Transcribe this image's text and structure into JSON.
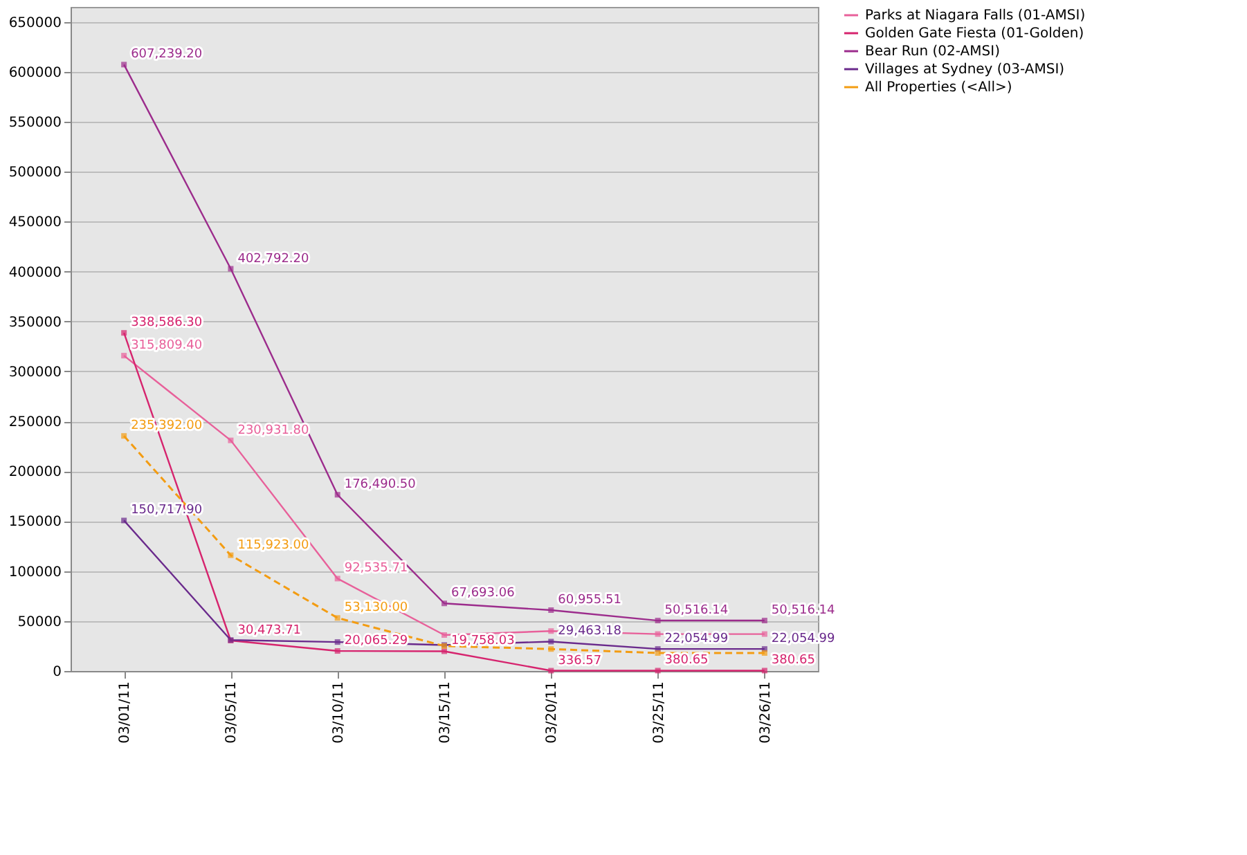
{
  "chart_data": {
    "type": "line",
    "categories": [
      "03/01/11",
      "03/05/11",
      "03/10/11",
      "03/15/11",
      "03/20/11",
      "03/25/11",
      "03/26/11"
    ],
    "ylim": [
      0,
      665000
    ],
    "yticks": [
      0,
      50000,
      100000,
      150000,
      200000,
      250000,
      300000,
      350000,
      400000,
      450000,
      500000,
      550000,
      600000,
      650000
    ],
    "grid": "y",
    "legend": "top right",
    "marker": "square",
    "series": [
      {
        "name": "Parks at Niagara Falls (01-AMSI)",
        "color": "#e8609a",
        "line_style": "solid",
        "values": [
          315809.4,
          230931.8,
          92535.71,
          36000,
          40000,
          37000,
          37000
        ],
        "value_labels": [
          "315,809.40",
          "230,931.80",
          "92,535.71",
          null,
          null,
          null,
          null
        ]
      },
      {
        "name": "Golden Gate Fiesta (01-Golden)",
        "color": "#d6246e",
        "line_style": "solid",
        "values": [
          338586.3,
          30473.71,
          20065.29,
          19758.03,
          336.57,
          380.65,
          380.65
        ],
        "value_labels": [
          "338,586.30",
          "30,473.71",
          "20,065.29",
          "19,758.03",
          "336.57",
          "380.65",
          "380.65"
        ]
      },
      {
        "name": "Bear Run (02-AMSI)",
        "color": "#9c2c8c",
        "line_style": "solid",
        "values": [
          607239.2,
          402792.2,
          176490.5,
          67693.06,
          60955.51,
          50516.14,
          50516.14
        ],
        "value_labels": [
          "607,239.20",
          "402,792.20",
          "176,490.50",
          "67,693.06",
          "60,955.51",
          "50,516.14",
          "50,516.14"
        ]
      },
      {
        "name": "Villages at Sydney (03-AMSI)",
        "color": "#6a2a8c",
        "line_style": "solid",
        "values": [
          150717.9,
          31000,
          29000,
          26000,
          29463.18,
          22054.99,
          22054.99
        ],
        "value_labels": [
          "150,717.90",
          null,
          null,
          null,
          "29,463.18",
          "22,054.99",
          "22,054.99"
        ]
      },
      {
        "name": "All Properties (<All>)",
        "color": "#f39c12",
        "line_style": "dashed",
        "values": [
          235392.0,
          115923.0,
          53130.0,
          25000,
          22000,
          18000,
          18000
        ],
        "value_labels": [
          "235,392.00",
          "115,923.00",
          "53,130.00",
          null,
          null,
          null,
          null
        ]
      }
    ]
  }
}
